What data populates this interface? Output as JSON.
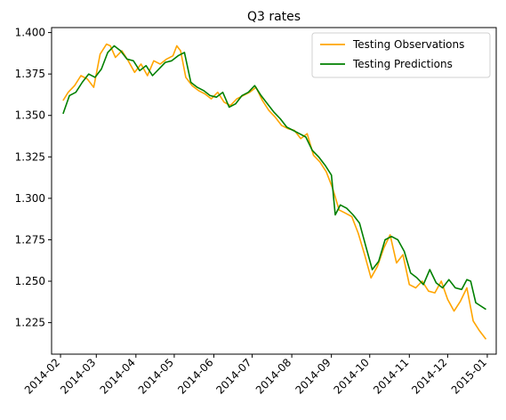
{
  "chart_data": {
    "type": "line",
    "title": "Q3 rates",
    "xlabel": "",
    "ylabel": "",
    "x_ticks": [
      "2014-02",
      "2014-03",
      "2014-04",
      "2014-05",
      "2014-06",
      "2014-07",
      "2014-08",
      "2014-09",
      "2014-10",
      "2014-11",
      "2014-12",
      "2015-01"
    ],
    "y_ticks": [
      "1.225",
      "1.250",
      "1.275",
      "1.300",
      "1.325",
      "1.350",
      "1.375",
      "1.400"
    ],
    "xlim": [
      "2014-01-25",
      "2015-01-08"
    ],
    "ylim": [
      1.206,
      1.403
    ],
    "grid": false,
    "legend": "top-right",
    "series": [
      {
        "name": "Testing Observations",
        "color": "#ffa500",
        "x": [
          "2014-02-03",
          "2014-02-07",
          "2014-02-12",
          "2014-02-17",
          "2014-02-22",
          "2014-02-27",
          "2014-03-04",
          "2014-03-09",
          "2014-03-12",
          "2014-03-16",
          "2014-03-21",
          "2014-03-26",
          "2014-03-31",
          "2014-04-05",
          "2014-04-10",
          "2014-04-15",
          "2014-04-20",
          "2014-04-25",
          "2014-04-30",
          "2014-05-03",
          "2014-05-06",
          "2014-05-10",
          "2014-05-15",
          "2014-05-20",
          "2014-05-25",
          "2014-05-30",
          "2014-06-04",
          "2014-06-09",
          "2014-06-14",
          "2014-06-19",
          "2014-06-24",
          "2014-06-29",
          "2014-07-04",
          "2014-07-09",
          "2014-07-14",
          "2014-07-19",
          "2014-07-24",
          "2014-07-29",
          "2014-08-03",
          "2014-08-08",
          "2014-08-13",
          "2014-08-18",
          "2014-08-23",
          "2014-08-28",
          "2014-09-02",
          "2014-09-07",
          "2014-09-12",
          "2014-09-17",
          "2014-09-22",
          "2014-09-27",
          "2014-10-02",
          "2014-10-07",
          "2014-10-12",
          "2014-10-17",
          "2014-10-22",
          "2014-10-27",
          "2014-11-01",
          "2014-11-06",
          "2014-11-11",
          "2014-11-16",
          "2014-11-21",
          "2014-11-26",
          "2014-12-01",
          "2014-12-06",
          "2014-12-11",
          "2014-12-16",
          "2014-12-21",
          "2014-12-26",
          "2014-12-31"
        ],
        "values": [
          1.359,
          1.364,
          1.368,
          1.374,
          1.372,
          1.367,
          1.387,
          1.393,
          1.392,
          1.385,
          1.389,
          1.383,
          1.376,
          1.381,
          1.374,
          1.383,
          1.381,
          1.384,
          1.386,
          1.392,
          1.389,
          1.373,
          1.368,
          1.365,
          1.363,
          1.36,
          1.364,
          1.358,
          1.356,
          1.36,
          1.362,
          1.364,
          1.367,
          1.359,
          1.353,
          1.349,
          1.344,
          1.342,
          1.341,
          1.336,
          1.339,
          1.326,
          1.322,
          1.316,
          1.306,
          1.293,
          1.291,
          1.289,
          1.279,
          1.266,
          1.252,
          1.259,
          1.27,
          1.278,
          1.261,
          1.266,
          1.248,
          1.246,
          1.25,
          1.244,
          1.243,
          1.25,
          1.239,
          1.232,
          1.238,
          1.246,
          1.226,
          1.22,
          1.215
        ]
      },
      {
        "name": "Testing Predictions",
        "color": "#008000",
        "x": [
          "2014-02-03",
          "2014-02-08",
          "2014-02-13",
          "2014-02-18",
          "2014-02-23",
          "2014-02-28",
          "2014-03-05",
          "2014-03-10",
          "2014-03-15",
          "2014-03-20",
          "2014-03-25",
          "2014-03-30",
          "2014-04-04",
          "2014-04-09",
          "2014-04-14",
          "2014-04-19",
          "2014-04-24",
          "2014-04-29",
          "2014-05-04",
          "2014-05-09",
          "2014-05-14",
          "2014-05-19",
          "2014-05-24",
          "2014-05-29",
          "2014-06-03",
          "2014-06-08",
          "2014-06-13",
          "2014-06-18",
          "2014-06-23",
          "2014-06-28",
          "2014-07-03",
          "2014-07-08",
          "2014-07-13",
          "2014-07-18",
          "2014-07-23",
          "2014-07-28",
          "2014-08-02",
          "2014-08-07",
          "2014-08-12",
          "2014-08-17",
          "2014-08-22",
          "2014-08-27",
          "2014-09-01",
          "2014-09-04",
          "2014-09-08",
          "2014-09-13",
          "2014-09-18",
          "2014-09-23",
          "2014-09-28",
          "2014-10-03",
          "2014-10-08",
          "2014-10-13",
          "2014-10-18",
          "2014-10-23",
          "2014-10-28",
          "2014-11-02",
          "2014-11-07",
          "2014-11-12",
          "2014-11-17",
          "2014-11-22",
          "2014-11-27",
          "2014-12-02",
          "2014-12-07",
          "2014-12-12",
          "2014-12-16",
          "2014-12-19",
          "2014-12-23",
          "2014-12-27",
          "2014-12-31"
        ],
        "values": [
          1.351,
          1.362,
          1.364,
          1.37,
          1.375,
          1.373,
          1.378,
          1.388,
          1.392,
          1.389,
          1.384,
          1.383,
          1.377,
          1.38,
          1.374,
          1.378,
          1.382,
          1.383,
          1.386,
          1.388,
          1.37,
          1.367,
          1.365,
          1.362,
          1.361,
          1.364,
          1.355,
          1.357,
          1.362,
          1.364,
          1.368,
          1.362,
          1.357,
          1.352,
          1.348,
          1.343,
          1.341,
          1.339,
          1.337,
          1.329,
          1.325,
          1.32,
          1.314,
          1.29,
          1.296,
          1.294,
          1.29,
          1.285,
          1.271,
          1.257,
          1.262,
          1.275,
          1.277,
          1.275,
          1.268,
          1.255,
          1.252,
          1.248,
          1.257,
          1.249,
          1.246,
          1.251,
          1.246,
          1.245,
          1.251,
          1.25,
          1.237,
          1.235,
          1.233
        ]
      }
    ]
  }
}
